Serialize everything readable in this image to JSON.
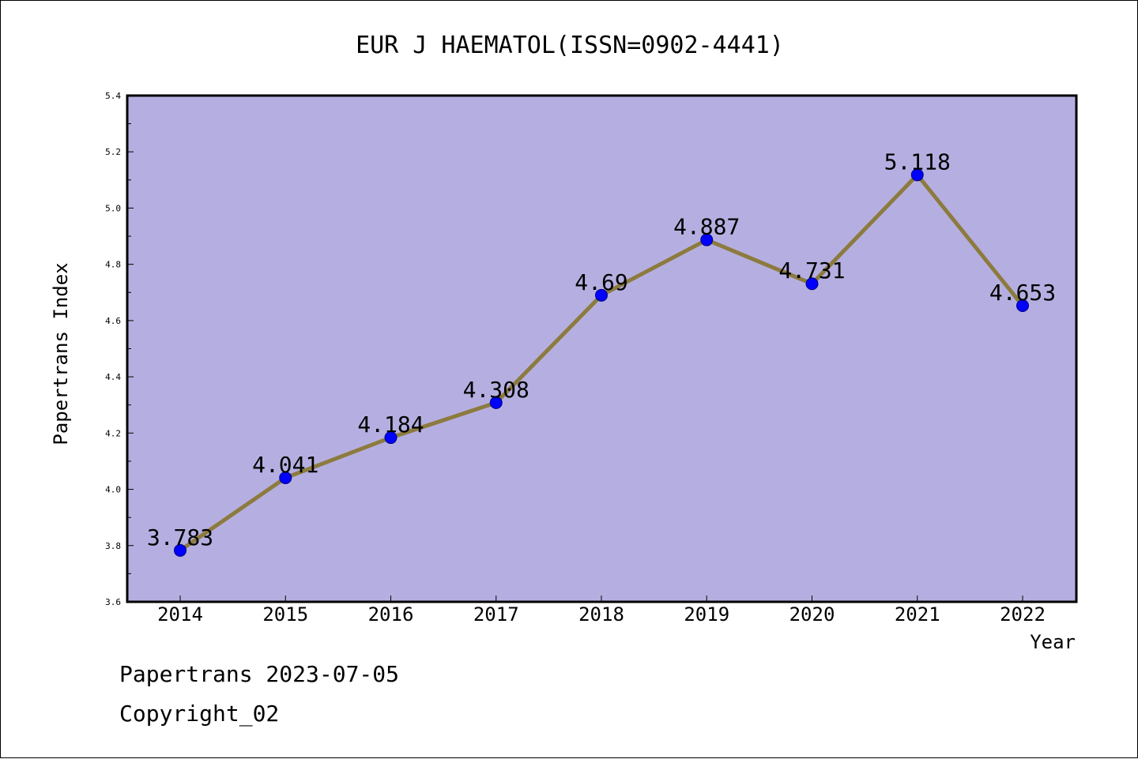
{
  "colors": {
    "plot_background": "#b5afe1",
    "line": "#8c7b3e",
    "marker": "#0000ff",
    "frame": "#000000"
  },
  "chart_data": {
    "type": "line",
    "title": "EUR J HAEMATOL(ISSN=0902-4441)",
    "xlabel": "Year",
    "ylabel": "Papertrans Index",
    "categories": [
      "2014",
      "2015",
      "2016",
      "2017",
      "2018",
      "2019",
      "2020",
      "2021",
      "2022"
    ],
    "series": [
      {
        "values": [
          3.783,
          4.041,
          4.184,
          4.308,
          4.69,
          4.887,
          4.731,
          5.118,
          4.653
        ],
        "data_labels": [
          "3.783",
          "4.041",
          "4.184",
          "4.308",
          "4.69",
          "4.887",
          "4.731",
          "5.118",
          "4.653"
        ]
      }
    ],
    "ylim": [
      3.6,
      5.4
    ],
    "yticks": [
      "3.6",
      "3.8",
      "4.0",
      "4.2",
      "4.4",
      "4.6",
      "4.8",
      "5.0",
      "5.2",
      "5.4"
    ],
    "grid": false,
    "legend": "none"
  },
  "footer": {
    "line1": "Papertrans 2023-07-05",
    "line2": "Copyright_02"
  }
}
